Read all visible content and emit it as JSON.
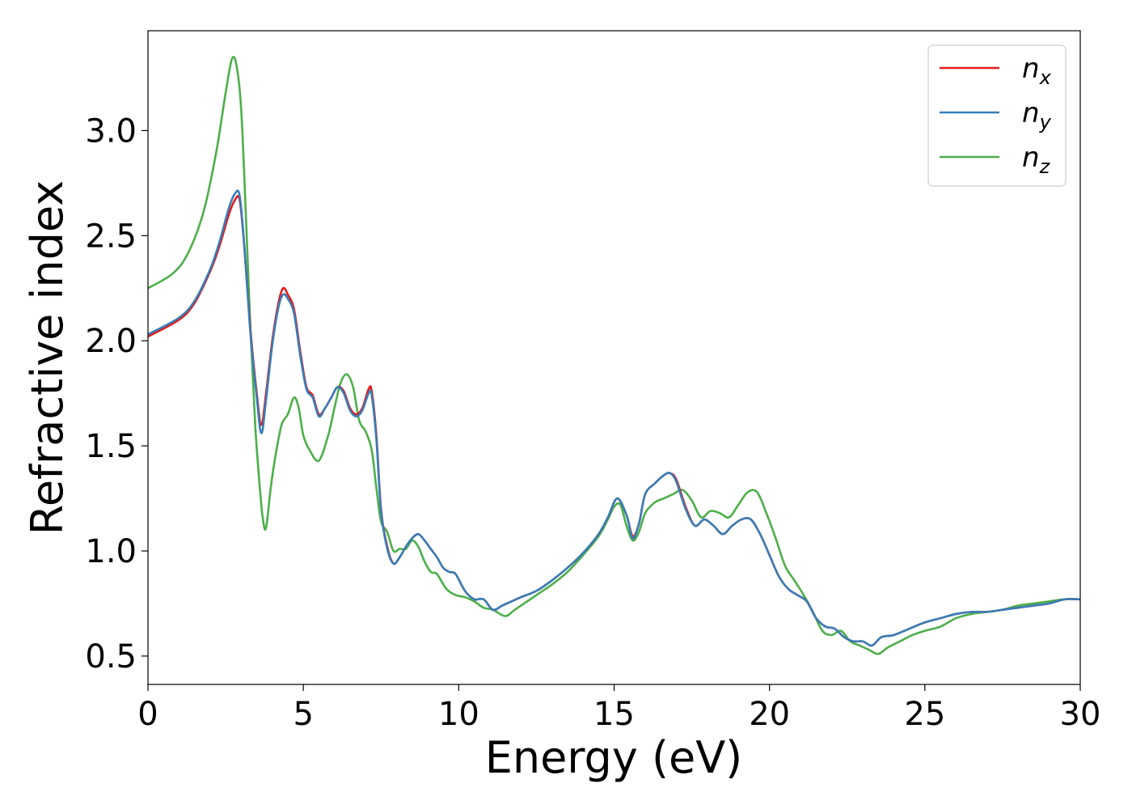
{
  "chart_data": {
    "type": "line",
    "xlabel": "Energy (eV)",
    "ylabel": "Refractive index",
    "xlim": [
      0,
      30
    ],
    "ylim": [
      0.365,
      3.475
    ],
    "xticks": [
      0,
      5,
      10,
      15,
      20,
      25,
      30
    ],
    "yticks": [
      0.5,
      1.0,
      1.5,
      2.0,
      2.5,
      3.0
    ],
    "xtick_labels": [
      "0",
      "5",
      "10",
      "15",
      "20",
      "25",
      "30"
    ],
    "ytick_labels": [
      "0.5",
      "1.0",
      "1.5",
      "2.0",
      "2.5",
      "3.0"
    ],
    "grid": false,
    "legend_position": "top-right",
    "series": [
      {
        "name": "n_x",
        "label_base": "n",
        "label_sub": "x",
        "color": "#e41a1c",
        "x": [
          0,
          1,
          1.5,
          2,
          2.3,
          2.6,
          2.8,
          2.95,
          3.1,
          3.3,
          3.5,
          3.65,
          3.8,
          4.0,
          4.2,
          4.35,
          4.5,
          4.7,
          4.9,
          5.1,
          5.3,
          5.5,
          5.7,
          5.9,
          6.1,
          6.3,
          6.5,
          6.7,
          6.9,
          7.1,
          7.2,
          7.35,
          7.5,
          7.7,
          7.9,
          8.1,
          8.3,
          8.5,
          8.7,
          8.9,
          9.1,
          9.3,
          9.5,
          9.7,
          9.9,
          10.2,
          10.5,
          10.8,
          11.1,
          11.4,
          11.7,
          12,
          12.5,
          13,
          13.5,
          14,
          14.5,
          14.8,
          15.1,
          15.4,
          15.6,
          15.8,
          16,
          16.3,
          16.6,
          16.8,
          17,
          17.3,
          17.6,
          17.9,
          18.2,
          18.5,
          18.8,
          19.1,
          19.4,
          19.7,
          20,
          20.3,
          20.6,
          20.9,
          21.2,
          21.5,
          21.8,
          22.1,
          22.4,
          22.7,
          23,
          23.3,
          23.6,
          24,
          24.5,
          25,
          25.5,
          26,
          26.5,
          27,
          27.5,
          28,
          28.5,
          29,
          29.5,
          30
        ],
        "y": [
          2.02,
          2.1,
          2.18,
          2.33,
          2.45,
          2.6,
          2.67,
          2.67,
          2.45,
          2.05,
          1.75,
          1.6,
          1.75,
          2.0,
          2.18,
          2.25,
          2.22,
          2.15,
          1.95,
          1.78,
          1.74,
          1.65,
          1.68,
          1.73,
          1.78,
          1.76,
          1.68,
          1.65,
          1.68,
          1.77,
          1.76,
          1.55,
          1.2,
          1.02,
          0.94,
          0.97,
          1.02,
          1.06,
          1.08,
          1.05,
          1.01,
          0.97,
          0.92,
          0.9,
          0.89,
          0.81,
          0.77,
          0.77,
          0.72,
          0.74,
          0.76,
          0.78,
          0.81,
          0.86,
          0.92,
          0.99,
          1.08,
          1.16,
          1.25,
          1.17,
          1.07,
          1.13,
          1.27,
          1.32,
          1.36,
          1.37,
          1.34,
          1.21,
          1.12,
          1.15,
          1.12,
          1.08,
          1.12,
          1.15,
          1.15,
          1.08,
          0.98,
          0.88,
          0.82,
          0.79,
          0.76,
          0.68,
          0.64,
          0.63,
          0.59,
          0.57,
          0.57,
          0.55,
          0.59,
          0.6,
          0.63,
          0.66,
          0.68,
          0.7,
          0.71,
          0.71,
          0.72,
          0.73,
          0.74,
          0.75,
          0.77,
          0.77
        ]
      },
      {
        "name": "n_y",
        "label_base": "n",
        "label_sub": "y",
        "color": "#377eb8",
        "x": [
          0,
          1,
          1.5,
          2,
          2.3,
          2.6,
          2.8,
          2.95,
          3.1,
          3.3,
          3.5,
          3.65,
          3.8,
          4.0,
          4.2,
          4.35,
          4.5,
          4.7,
          4.9,
          5.1,
          5.3,
          5.5,
          5.7,
          5.9,
          6.1,
          6.3,
          6.5,
          6.7,
          6.9,
          7.1,
          7.2,
          7.35,
          7.5,
          7.7,
          7.9,
          8.1,
          8.3,
          8.5,
          8.7,
          8.9,
          9.1,
          9.3,
          9.5,
          9.7,
          9.9,
          10.2,
          10.5,
          10.8,
          11.1,
          11.4,
          11.7,
          12,
          12.5,
          13,
          13.5,
          14,
          14.5,
          14.8,
          15.1,
          15.4,
          15.6,
          15.8,
          16,
          16.3,
          16.6,
          16.8,
          17,
          17.3,
          17.6,
          17.9,
          18.2,
          18.5,
          18.8,
          19.1,
          19.4,
          19.7,
          20,
          20.3,
          20.6,
          20.9,
          21.2,
          21.5,
          21.8,
          22.1,
          22.4,
          22.7,
          23,
          23.3,
          23.6,
          24,
          24.5,
          25,
          25.5,
          26,
          26.5,
          27,
          27.5,
          28,
          28.5,
          29,
          29.5,
          30
        ],
        "y": [
          2.03,
          2.11,
          2.19,
          2.34,
          2.47,
          2.63,
          2.7,
          2.69,
          2.45,
          2.03,
          1.73,
          1.56,
          1.72,
          1.98,
          2.16,
          2.22,
          2.2,
          2.13,
          1.93,
          1.77,
          1.73,
          1.64,
          1.68,
          1.73,
          1.78,
          1.75,
          1.67,
          1.64,
          1.67,
          1.75,
          1.74,
          1.53,
          1.19,
          1.01,
          0.94,
          0.97,
          1.02,
          1.06,
          1.08,
          1.05,
          1.01,
          0.97,
          0.92,
          0.9,
          0.89,
          0.81,
          0.77,
          0.77,
          0.72,
          0.74,
          0.76,
          0.78,
          0.81,
          0.86,
          0.92,
          0.99,
          1.08,
          1.16,
          1.25,
          1.17,
          1.06,
          1.13,
          1.27,
          1.32,
          1.36,
          1.37,
          1.33,
          1.2,
          1.12,
          1.15,
          1.12,
          1.08,
          1.12,
          1.15,
          1.15,
          1.08,
          0.98,
          0.88,
          0.82,
          0.79,
          0.76,
          0.68,
          0.64,
          0.63,
          0.59,
          0.57,
          0.57,
          0.55,
          0.59,
          0.6,
          0.63,
          0.66,
          0.68,
          0.7,
          0.71,
          0.71,
          0.72,
          0.73,
          0.74,
          0.75,
          0.77,
          0.77
        ]
      },
      {
        "name": "n_z",
        "label_base": "n",
        "label_sub": "z",
        "color": "#4daf4a",
        "x": [
          0,
          0.8,
          1.3,
          1.8,
          2.2,
          2.5,
          2.7,
          2.85,
          3.0,
          3.15,
          3.3,
          3.45,
          3.6,
          3.7,
          3.8,
          3.95,
          4.1,
          4.3,
          4.5,
          4.7,
          4.85,
          5.0,
          5.2,
          5.5,
          5.8,
          6.0,
          6.2,
          6.4,
          6.6,
          6.8,
          7.0,
          7.2,
          7.35,
          7.5,
          7.7,
          7.9,
          8.1,
          8.3,
          8.5,
          8.7,
          8.9,
          9.1,
          9.3,
          9.6,
          9.9,
          10.2,
          10.5,
          10.8,
          11.1,
          11.5,
          11.8,
          12.2,
          12.6,
          13,
          13.5,
          14,
          14.5,
          14.8,
          15.0,
          15.2,
          15.4,
          15.6,
          15.8,
          16,
          16.3,
          16.6,
          16.9,
          17.2,
          17.5,
          17.8,
          18.1,
          18.4,
          18.7,
          19.0,
          19.3,
          19.6,
          19.9,
          20.2,
          20.5,
          20.8,
          21.1,
          21.4,
          21.7,
          22.0,
          22.3,
          22.6,
          22.9,
          23.2,
          23.5,
          23.8,
          24.2,
          24.6,
          25,
          25.5,
          26,
          26.5,
          27,
          27.5,
          28,
          28.5,
          29,
          29.5,
          30
        ],
        "y": [
          2.25,
          2.32,
          2.42,
          2.62,
          2.9,
          3.18,
          3.34,
          3.31,
          3.1,
          2.6,
          2.05,
          1.6,
          1.3,
          1.15,
          1.11,
          1.3,
          1.45,
          1.6,
          1.65,
          1.73,
          1.68,
          1.55,
          1.48,
          1.43,
          1.55,
          1.68,
          1.8,
          1.84,
          1.78,
          1.62,
          1.57,
          1.48,
          1.3,
          1.14,
          1.09,
          1.0,
          1.01,
          1.01,
          1.05,
          1.02,
          0.95,
          0.9,
          0.89,
          0.82,
          0.79,
          0.78,
          0.76,
          0.73,
          0.72,
          0.69,
          0.72,
          0.76,
          0.8,
          0.84,
          0.9,
          0.98,
          1.07,
          1.15,
          1.21,
          1.22,
          1.12,
          1.05,
          1.09,
          1.18,
          1.23,
          1.25,
          1.27,
          1.29,
          1.24,
          1.16,
          1.19,
          1.18,
          1.16,
          1.22,
          1.28,
          1.28,
          1.18,
          1.06,
          0.93,
          0.86,
          0.79,
          0.71,
          0.62,
          0.6,
          0.62,
          0.57,
          0.55,
          0.53,
          0.51,
          0.54,
          0.57,
          0.6,
          0.62,
          0.64,
          0.68,
          0.7,
          0.71,
          0.72,
          0.74,
          0.75,
          0.76,
          0.77,
          0.77
        ]
      }
    ]
  }
}
